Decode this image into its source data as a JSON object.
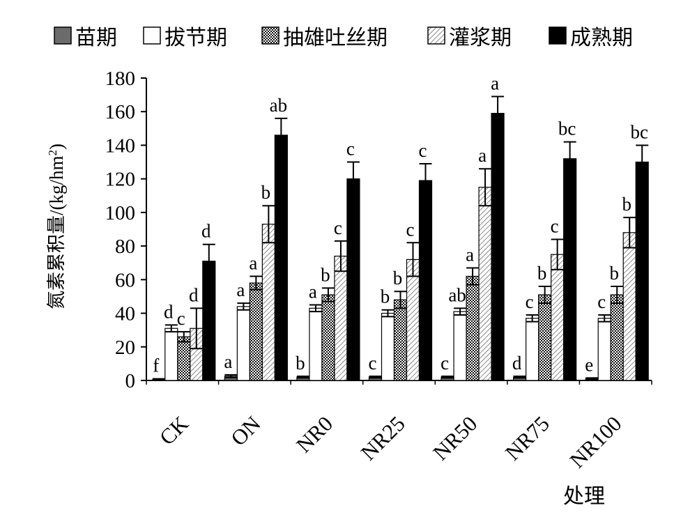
{
  "chart_data": {
    "type": "bar",
    "xlabel": "处理",
    "ylabel": "氮素累积量/(kg/hm²)",
    "ylabel_parts": {
      "main": "氮素累积量/(kg/hm",
      "sup": "2",
      "tail": ")"
    },
    "ylim": [
      0,
      180
    ],
    "yticks": [
      0,
      20,
      40,
      60,
      80,
      100,
      120,
      140,
      160,
      180
    ],
    "categories": [
      "CK",
      "ON",
      "NR0",
      "NR25",
      "NR50",
      "NR75",
      "NR100"
    ],
    "legend_position": "top",
    "grid": false,
    "series": [
      {
        "name": "苗期",
        "pattern": "dark-gray",
        "values": [
          0.5,
          2.5,
          2,
          2,
          2,
          2,
          1
        ],
        "errors": [
          0.5,
          0.8,
          0.5,
          0.5,
          0.5,
          0.5,
          0.5
        ],
        "letters": [
          "f",
          "a",
          "b",
          "c",
          "c",
          "d",
          "e"
        ]
      },
      {
        "name": "拔节期",
        "pattern": "white",
        "values": [
          31,
          44,
          43,
          40,
          41,
          37,
          37
        ],
        "errors": [
          2,
          2,
          2,
          2,
          2,
          2,
          2
        ],
        "letters": [
          "d",
          "a",
          "a",
          "b",
          "ab",
          "c",
          "c"
        ]
      },
      {
        "name": "抽雄吐丝期",
        "pattern": "checker",
        "values": [
          26,
          58,
          51,
          48,
          62,
          51,
          51
        ],
        "errors": [
          3,
          4,
          4,
          5,
          5,
          5,
          5
        ],
        "letters": [
          "c",
          "a",
          "b",
          "b",
          "a",
          "b",
          "b"
        ]
      },
      {
        "name": "灌浆期",
        "pattern": "light-hatch",
        "values": [
          31,
          93,
          74,
          72,
          115,
          75,
          88
        ],
        "errors": [
          12,
          11,
          9,
          10,
          11,
          9,
          9
        ],
        "letters": [
          "d",
          "b",
          "c",
          "c",
          "a",
          "c",
          "b"
        ]
      },
      {
        "name": "成熟期",
        "pattern": "black",
        "values": [
          71,
          146,
          120,
          119,
          159,
          132,
          130
        ],
        "errors": [
          10,
          10,
          10,
          10,
          10,
          10,
          10
        ],
        "letters": [
          "d",
          "ab",
          "c",
          "c",
          "a",
          "bc",
          "bc"
        ]
      }
    ]
  }
}
